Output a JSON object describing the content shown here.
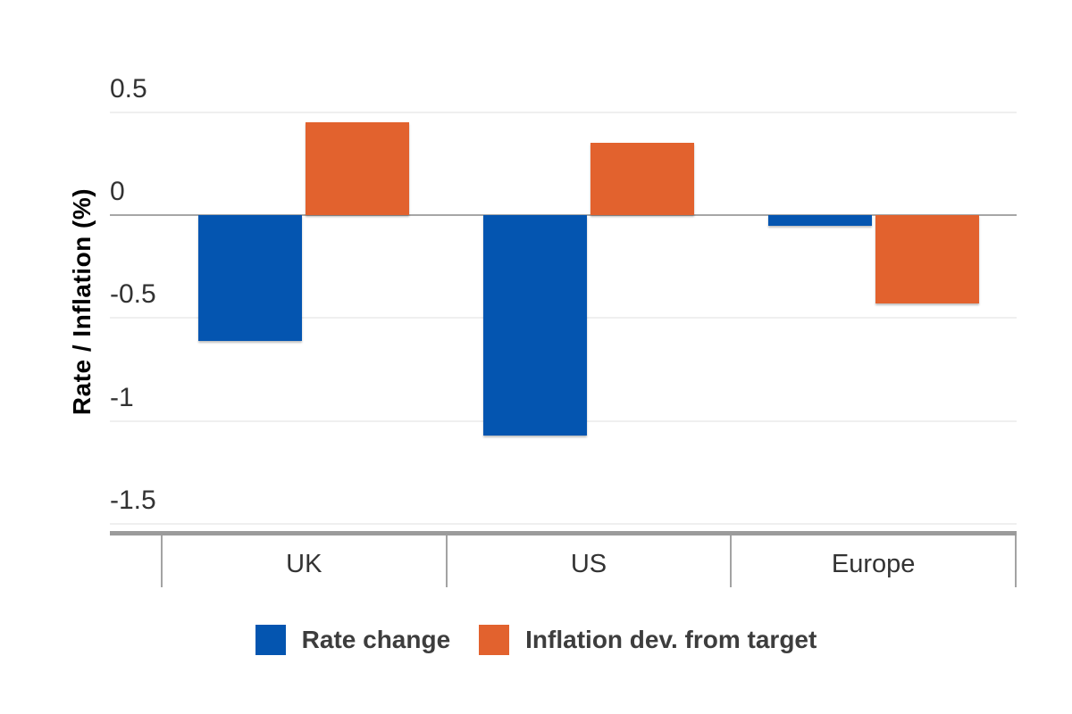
{
  "chart_data": {
    "type": "bar",
    "title": "",
    "xlabel": "",
    "ylabel": "Rate / Inflation (%)",
    "categories": [
      "UK",
      "US",
      "Europe"
    ],
    "series": [
      {
        "name": "Rate change",
        "color": "#0455B0",
        "values": [
          -0.61,
          -1.07,
          -0.05
        ]
      },
      {
        "name": "Inflation dev. from target",
        "color": "#E2622E",
        "values": [
          0.45,
          0.35,
          -0.43
        ]
      }
    ],
    "ylim": [
      -1.5,
      0.5
    ],
    "yticks": [
      0.5,
      0,
      -0.5,
      -1,
      -1.5
    ],
    "ytick_labels": [
      "0.5",
      "0",
      "-0.5",
      "-1",
      "-1.5"
    ],
    "grid": true,
    "legend_position": "bottom"
  },
  "colors": {
    "background": "#ffffff",
    "gridline": "#efefef",
    "zero_line": "#a6a6a6",
    "axis_line": "#9b9b9b",
    "tick_text": "#323232",
    "category_text": "#333333",
    "legend_text": "#3d3d3d"
  }
}
